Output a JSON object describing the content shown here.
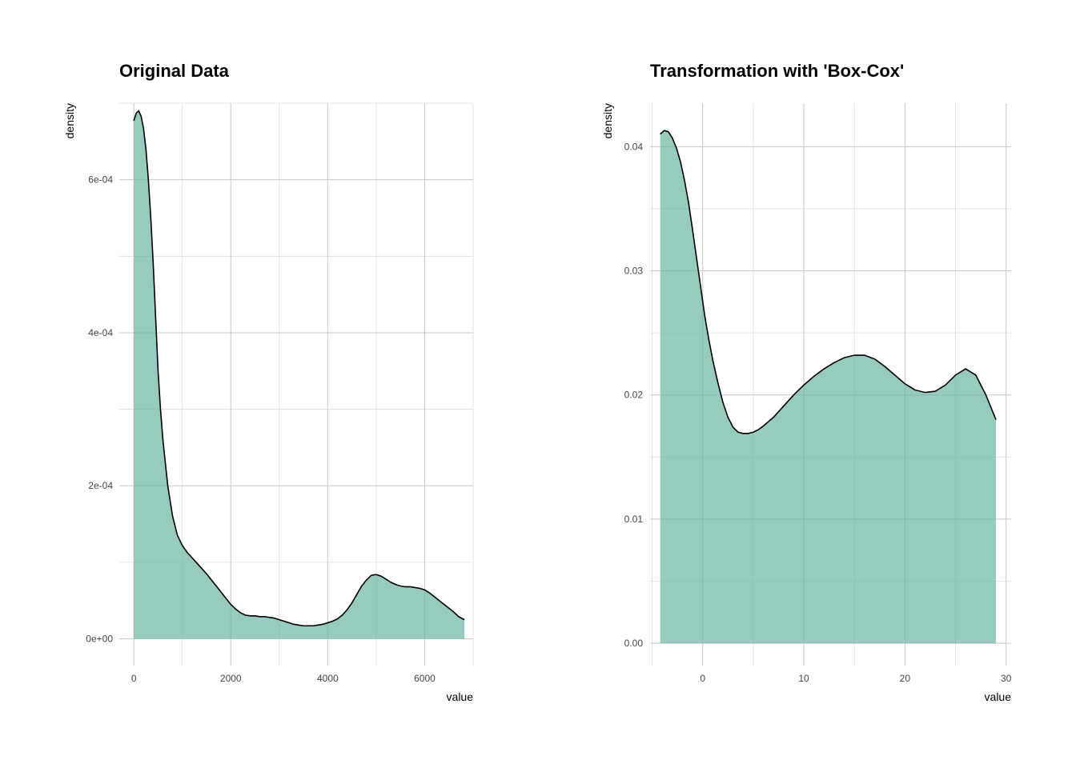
{
  "chart_data": [
    {
      "type": "area",
      "title": "Original Data",
      "xlabel": "value",
      "ylabel": "density",
      "xlim": [
        -300,
        7000
      ],
      "ylim": [
        -3.5e-05,
        0.0007
      ],
      "x_ticks": [
        0,
        2000,
        4000,
        6000
      ],
      "x_tick_labels": [
        "0",
        "2000",
        "4000",
        "6000"
      ],
      "x_minor_ticks": [
        1000,
        3000,
        5000,
        7000
      ],
      "y_ticks": [
        0,
        0.0002,
        0.0004,
        0.0006
      ],
      "y_tick_labels": [
        "0e+00",
        "2e-04",
        "4e-04",
        "6e-04"
      ],
      "y_minor_ticks": [
        0.0001,
        0.0003,
        0.0005,
        0.0007
      ],
      "grid": true,
      "fill_color": "#66b2a0",
      "x": [
        0,
        50,
        100,
        150,
        200,
        250,
        300,
        350,
        400,
        450,
        500,
        550,
        600,
        650,
        700,
        800,
        900,
        1000,
        1100,
        1200,
        1300,
        1400,
        1500,
        1600,
        1700,
        1800,
        1900,
        2000,
        2100,
        2200,
        2300,
        2400,
        2500,
        2600,
        2700,
        2800,
        2900,
        3000,
        3100,
        3200,
        3300,
        3400,
        3500,
        3600,
        3700,
        3800,
        3900,
        4000,
        4100,
        4200,
        4300,
        4400,
        4500,
        4600,
        4700,
        4800,
        4900,
        5000,
        5100,
        5200,
        5300,
        5400,
        5500,
        5600,
        5700,
        5800,
        5900,
        6000,
        6100,
        6200,
        6300,
        6400,
        6500,
        6600,
        6700,
        6820
      ],
      "y": [
        0.000677,
        0.000687,
        0.00069,
        0.000683,
        0.000667,
        0.00064,
        0.0006,
        0.00055,
        0.00049,
        0.00042,
        0.00035,
        0.0003,
        0.00026,
        0.00023,
        0.0002,
        0.00016,
        0.000135,
        0.000122,
        0.000113,
        0.000106,
        9.9e-05,
        9.2e-05,
        8.5e-05,
        7.7e-05,
        6.9e-05,
        6.1e-05,
        5.3e-05,
        4.5e-05,
        3.9e-05,
        3.4e-05,
        3.1e-05,
        3e-05,
        3e-05,
        2.9e-05,
        2.9e-05,
        2.8e-05,
        2.7e-05,
        2.5e-05,
        2.3e-05,
        2.1e-05,
        1.9e-05,
        1.8e-05,
        1.7e-05,
        1.7e-05,
        1.7e-05,
        1.8e-05,
        1.9e-05,
        2.1e-05,
        2.3e-05,
        2.6e-05,
        3.1e-05,
        3.8e-05,
        4.7e-05,
        5.8e-05,
        6.9e-05,
        7.7e-05,
        8.3e-05,
        8.4e-05,
        8.2e-05,
        7.8e-05,
        7.4e-05,
        7.1e-05,
        6.9e-05,
        6.8e-05,
        6.8e-05,
        6.7e-05,
        6.6e-05,
        6.4e-05,
        6e-05,
        5.5e-05,
        5e-05,
        4.5e-05,
        4e-05,
        3.5e-05,
        2.9e-05,
        2.5e-05
      ]
    },
    {
      "type": "area",
      "title": "Transformation with 'Box-Cox'",
      "xlabel": "value",
      "ylabel": "density",
      "xlim": [
        -5.2,
        30.5
      ],
      "ylim": [
        -0.0018,
        0.0435
      ],
      "x_ticks": [
        0,
        10,
        20,
        30
      ],
      "x_tick_labels": [
        "0",
        "10",
        "20",
        "30"
      ],
      "x_minor_ticks": [
        -5,
        5,
        15,
        25
      ],
      "y_ticks": [
        0.0,
        0.01,
        0.02,
        0.03,
        0.04
      ],
      "y_tick_labels": [
        "0.00",
        "0.01",
        "0.02",
        "0.03",
        "0.04"
      ],
      "y_minor_ticks": [
        0.005,
        0.015,
        0.025,
        0.035
      ],
      "grid": true,
      "fill_color": "#66b2a0",
      "x": [
        -4.2,
        -3.8,
        -3.4,
        -3.0,
        -2.6,
        -2.2,
        -1.8,
        -1.4,
        -1.0,
        -0.6,
        -0.2,
        0.2,
        0.6,
        1.0,
        1.5,
        2.0,
        2.5,
        3.0,
        3.5,
        4.0,
        4.5,
        5.0,
        5.5,
        6.0,
        7.0,
        8.0,
        9.0,
        10.0,
        11.0,
        12.0,
        13.0,
        14.0,
        15.0,
        16.0,
        17.0,
        18.0,
        19.0,
        20.0,
        21.0,
        22.0,
        23.0,
        24.0,
        25.0,
        26.0,
        27.0,
        28.0,
        29.0
      ],
      "y": [
        0.041,
        0.0413,
        0.0412,
        0.0407,
        0.0399,
        0.0388,
        0.0373,
        0.0355,
        0.0333,
        0.031,
        0.0287,
        0.0264,
        0.0245,
        0.0228,
        0.021,
        0.0194,
        0.0182,
        0.0174,
        0.017,
        0.0169,
        0.0169,
        0.017,
        0.0172,
        0.0175,
        0.0182,
        0.0191,
        0.02,
        0.0208,
        0.0215,
        0.0221,
        0.0226,
        0.023,
        0.0232,
        0.0232,
        0.0229,
        0.0223,
        0.0216,
        0.0209,
        0.0204,
        0.0202,
        0.0203,
        0.0208,
        0.0216,
        0.0221,
        0.0216,
        0.02,
        0.018
      ]
    }
  ]
}
